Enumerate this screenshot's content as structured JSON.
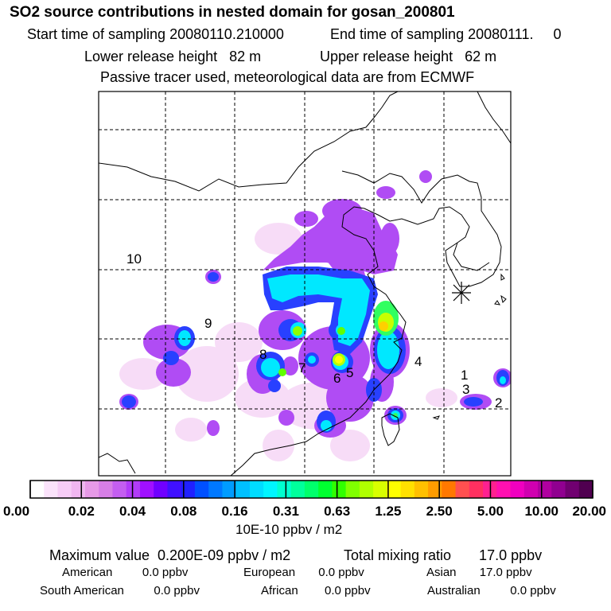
{
  "header": {
    "title": "SO2 source contributions in nested domain for gosan_200801",
    "start_time": "Start time of sampling 20080110.210000",
    "end_time": "End time of sampling 20080111.     0",
    "lower_height": "Lower release height   82 m",
    "upper_height": "Upper release height   62 m",
    "note": "Passive tracer used, meteorological data are from ECMWF"
  },
  "map": {
    "region_labels": [
      "1",
      "2",
      "3",
      "4",
      "5",
      "6",
      "7",
      "8",
      "9",
      "10"
    ],
    "receptor_icon": "asterisk-receptor-marker"
  },
  "colorbar": {
    "tick_labels": [
      "0.00",
      "0.02",
      "0.04",
      "0.08",
      "0.16",
      "0.31",
      "0.63",
      "1.25",
      "2.50",
      "5.00",
      "10.00",
      "20.00"
    ],
    "unit": "10E-10 ppbv / m2",
    "colors": [
      "#ffffff",
      "#fbe3fb",
      "#f6ccf6",
      "#f0b6f0",
      "#e79ae7",
      "#d77ee6",
      "#c45ef0",
      "#b23cf8",
      "#a010ff",
      "#7000ff",
      "#4010ff",
      "#2020ff",
      "#0050ff",
      "#0078ff",
      "#009cff",
      "#00c0ff",
      "#00dcff",
      "#00f5ff",
      "#00ffd0",
      "#00ff9c",
      "#00ff6c",
      "#00ff30",
      "#30ff00",
      "#80ff00",
      "#b0ff00",
      "#d8ff00",
      "#ffff00",
      "#ffe000",
      "#ffc000",
      "#ff9c00",
      "#ff7800",
      "#ff5050",
      "#ff3060",
      "#ff2090",
      "#ff10b0",
      "#f000c0",
      "#d000b0",
      "#b000a0",
      "#900090",
      "#700070",
      "#500050"
    ]
  },
  "summary": {
    "max_line": "Maximum value  0.200E-09 ppbv / m2",
    "total_line": "Total mixing ratio       17.0 ppbv",
    "american": "American         0.0 ppbv",
    "european": "European       0.0 ppbv",
    "asian": "Asian       17.0 ppbv",
    "south_american": "South American         0.0 ppbv",
    "african": "African        0.0 ppbv",
    "australian": "Australian         0.0 ppbv"
  }
}
